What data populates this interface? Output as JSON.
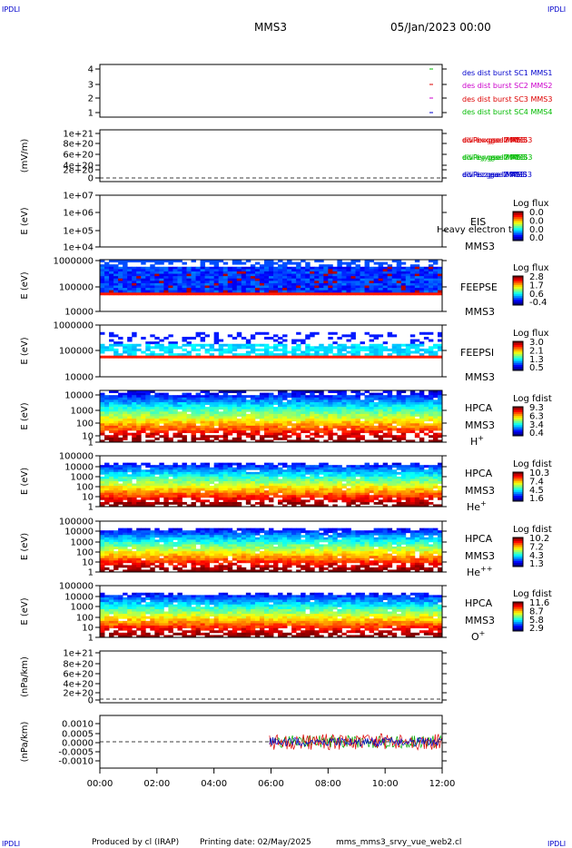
{
  "header": {
    "corner_tl": "IPDLI",
    "corner_tr": "IPDLI",
    "corner_bl": "IPDLI",
    "corner_br": "IPDLI",
    "title": "MMS3",
    "date": "05/Jan/2023 00:00"
  },
  "footer": {
    "produced": "Produced by cl (IRAP)",
    "printing": "Printing date: 02/May/2025",
    "script": "mms_mms3_srvy_vue_web2.cl"
  },
  "colors": {
    "blue": "#0000cc",
    "magenta": "#cc00cc",
    "red": "#dd0000",
    "green": "#00bb00"
  },
  "chart_data": [
    {
      "type": "scatter",
      "ylim": [
        0.5,
        4.5
      ],
      "ticks": [
        "4",
        "3",
        "2",
        "1"
      ],
      "legend": [
        "des dist burst SC1 MMS1",
        "des dist burst SC2 MMS2",
        "des dist burst SC3 MMS3",
        "des dist burst SC4 MMS4"
      ],
      "series": [
        {
          "name": "des dist burst SC1 MMS1",
          "x": [
            11.65
          ],
          "y": [
            1
          ]
        },
        {
          "name": "des dist burst SC2 MMS2",
          "x": [
            11.65
          ],
          "y": [
            2
          ]
        },
        {
          "name": "des dist burst SC3 MMS3",
          "x": [
            11.65
          ],
          "y": [
            3
          ]
        },
        {
          "name": "des dist burst SC4 MMS4",
          "x": [
            11.65
          ],
          "y": [
            4
          ]
        }
      ]
    },
    {
      "type": "line",
      "ylabel": "(mV/m)",
      "ticks": [
        "1e+21",
        "8e+20",
        "6e+20",
        "4e+20",
        "2e+20",
        "0"
      ],
      "legend": [
        "edi ex gse l2 MMS3",
        "edi ey gse l2 MMS3",
        "edi ez gse l2 MMS3"
      ]
    },
    {
      "type": "heatmap",
      "ylabel": "E (eV)",
      "ticks": [
        "1e+07",
        "1e+06",
        "1e+05",
        "1e+04"
      ],
      "side": [
        "EIS",
        "MMS3"
      ],
      "overlay": "Heavy electron to",
      "cbar": {
        "title": "Log flux",
        "labels": [
          "0.0",
          "0.0",
          "0.0",
          "0.0"
        ]
      }
    },
    {
      "type": "heatmap",
      "ylabel": "E (eV)",
      "ticks": [
        "1000000",
        "100000",
        "10000"
      ],
      "side": [
        "FEEPSE",
        "MMS3"
      ],
      "cbar": {
        "title": "Log flux",
        "labels": [
          "2.8",
          "1.7",
          "0.6",
          "-0.4"
        ]
      }
    },
    {
      "type": "heatmap",
      "ylabel": "E (eV)",
      "ticks": [
        "1000000",
        "100000",
        "10000"
      ],
      "side": [
        "FEEPSI",
        "MMS3"
      ],
      "cbar": {
        "title": "Log flux",
        "labels": [
          "3.0",
          "2.1",
          "1.3",
          "0.5"
        ]
      }
    },
    {
      "type": "heatmap",
      "ylabel": "E (eV)",
      "ticks": [
        "10000",
        "1000",
        "100",
        "10",
        "1"
      ],
      "side": [
        "HPCA",
        "MMS3"
      ],
      "species": "H",
      "sup": "+",
      "cbar": {
        "title": "Log fdist",
        "labels": [
          "9.3",
          "6.3",
          "3.4",
          "0.4"
        ]
      }
    },
    {
      "type": "heatmap",
      "ylabel": "E (eV)",
      "ticks": [
        "100000",
        "10000",
        "1000",
        "100",
        "10",
        "1"
      ],
      "side": [
        "HPCA",
        "MMS3"
      ],
      "species": "He",
      "sup": "+",
      "cbar": {
        "title": "Log fdist",
        "labels": [
          "10.3",
          "7.4",
          "4.5",
          "1.6"
        ]
      }
    },
    {
      "type": "heatmap",
      "ylabel": "E (eV)",
      "ticks": [
        "100000",
        "10000",
        "1000",
        "100",
        "10",
        "1"
      ],
      "side": [
        "HPCA",
        "MMS3"
      ],
      "species": "He",
      "sup": "++",
      "cbar": {
        "title": "Log fdist",
        "labels": [
          "10.2",
          "7.2",
          "4.3",
          "1.3"
        ]
      }
    },
    {
      "type": "heatmap",
      "ylabel": "E (eV)",
      "ticks": [
        "100000",
        "10000",
        "1000",
        "100",
        "10",
        "1"
      ],
      "side": [
        "HPCA",
        "MMS3"
      ],
      "species": "O",
      "sup": "+",
      "cbar": {
        "title": "Log fdist",
        "labels": [
          "11.6",
          "8.7",
          "5.8",
          "2.9"
        ]
      }
    },
    {
      "type": "line",
      "ylabel": "(nPa/km)",
      "ticks": [
        "1e+21",
        "8e+20",
        "6e+20",
        "4e+20",
        "2e+20",
        "0"
      ],
      "legend": [
        "divPe x gse MMS3",
        "divPe y gse MMS3",
        "divPe z gse MMS3"
      ]
    },
    {
      "type": "line",
      "ylabel": "(nPa/km)",
      "ticks": [
        "0.0010",
        "0.0005",
        "0.0000",
        "-0.0005",
        "-0.0010"
      ],
      "ylim": [
        -0.00135,
        0.00135
      ],
      "data_start_hour": 5.95,
      "legend": [
        "divPi x gse MMS3",
        "divPi y gse MMS3",
        "divPi z gse MMS3"
      ]
    }
  ],
  "xaxis": {
    "ticks": [
      "00:00",
      "02:00",
      "04:00",
      "06:00",
      "08:00",
      "10:00",
      "12:00"
    ],
    "range_hours": [
      0,
      12
    ]
  }
}
